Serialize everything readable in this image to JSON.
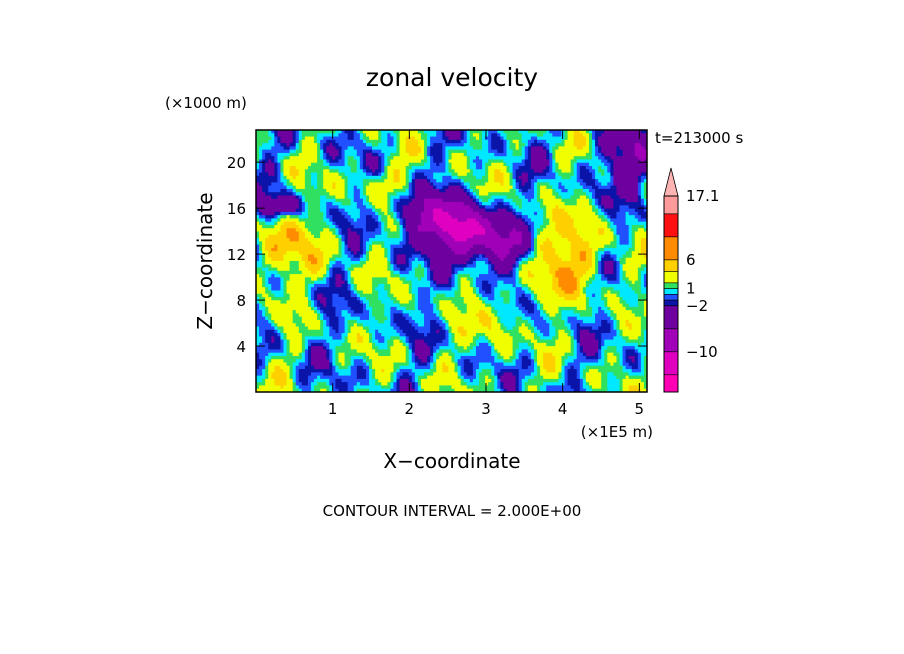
{
  "chart_data": {
    "type": "heatmap",
    "title": "zonal velocity",
    "xlabel": "X−coordinate",
    "ylabel": "Z−coordinate",
    "x_unit": "(×1E5 m)",
    "y_unit": "(×1000 m)",
    "time_label": "t=213000 s",
    "footer": "CONTOUR INTERVAL = 2.000E+00",
    "xlim": [
      0,
      5.1
    ],
    "ylim": [
      0,
      22.8
    ],
    "x_ticks": [
      "1",
      "2",
      "3",
      "4",
      "5"
    ],
    "y_ticks": [
      "4",
      "8",
      "12",
      "16",
      "20"
    ],
    "grid": false,
    "colorbar": {
      "placement": "right",
      "labels": [
        "17.1",
        "6",
        "1",
        "−2",
        "−10"
      ],
      "levels": [
        -17,
        -14,
        -10,
        -6,
        -2,
        -1,
        0,
        1,
        2,
        4,
        6,
        10,
        14,
        17.1
      ],
      "colors": [
        "#ff00b4",
        "#e000c0",
        "#a000b8",
        "#6e00a0",
        "#0a14a8",
        "#2050ff",
        "#00e8ff",
        "#30e060",
        "#f0ff00",
        "#ffd000",
        "#ff8c00",
        "#ff1010",
        "#ff9a9a",
        "#ffb4b4"
      ]
    }
  }
}
